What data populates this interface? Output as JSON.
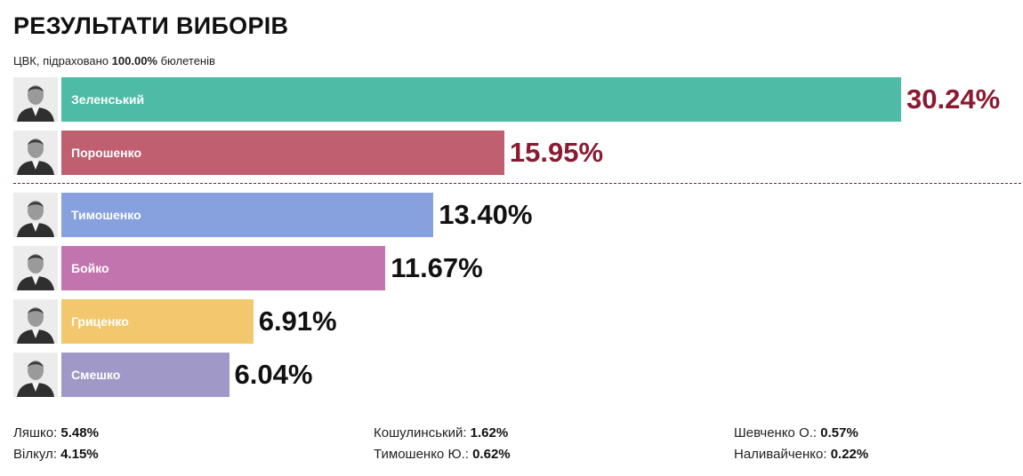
{
  "title": "РЕЗУЛЬТАТИ ВИБОРІВ",
  "subtitle": {
    "prefix": "ЦВК, підраховано ",
    "percent": "100.00%",
    "suffix": " бюлетенів"
  },
  "colors": {
    "highlight_value": "#8a1a32",
    "regular_value": "#111111",
    "divider": "#8a1a32"
  },
  "chart_data": {
    "type": "bar",
    "orientation": "horizontal",
    "categories": [
      "Зеленський",
      "Порошенко",
      "Тимошенко",
      "Бойко",
      "Гриценко",
      "Смешко"
    ],
    "values": [
      30.24,
      15.95,
      13.4,
      11.67,
      6.91,
      6.04
    ],
    "value_labels": [
      "30.24%",
      "15.95%",
      "13.40%",
      "11.67%",
      "6.91%",
      "6.04%"
    ],
    "colors": [
      "#4dbba5",
      "#bf5f6f",
      "#87a0de",
      "#c274ae",
      "#f3c76d",
      "#a099c8"
    ],
    "highlighted": [
      true,
      true,
      false,
      false,
      false,
      false
    ],
    "title": "РЕЗУЛЬТАТИ ВИБОРІВ"
  },
  "others": [
    [
      {
        "name": "Ляшко: ",
        "value": "5.48%"
      },
      {
        "name": "Вілкул: ",
        "value": "4.15%"
      }
    ],
    [
      {
        "name": "Кошулинський: ",
        "value": "1.62%"
      },
      {
        "name": "Тимошенко Ю.: ",
        "value": "0.62%"
      }
    ],
    [
      {
        "name": "Шевченко О.: ",
        "value": "0.57%"
      },
      {
        "name": "Наливайченко: ",
        "value": "0.22%"
      }
    ]
  ]
}
